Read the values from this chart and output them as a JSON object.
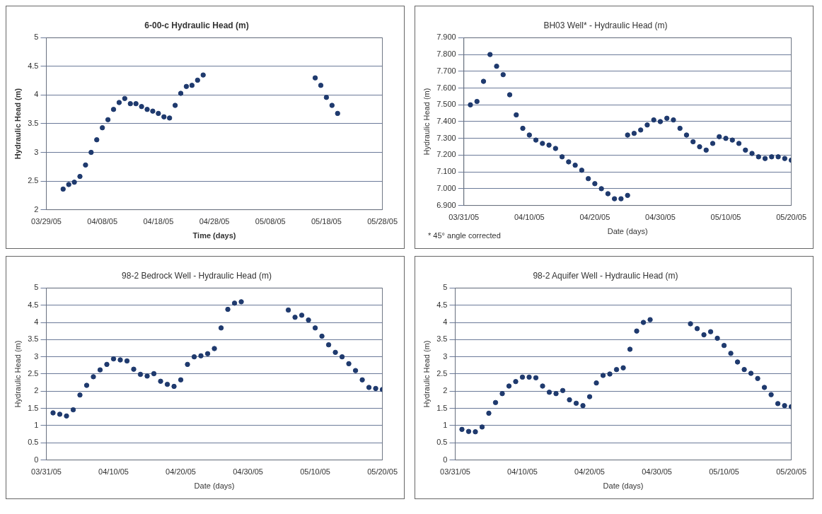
{
  "chart_data": [
    {
      "type": "scatter",
      "title": "6-00-c Hydraulic Head (m)",
      "xlabel": "Time (days)",
      "ylabel": "Hydraulic Head (m)",
      "color": "#1f3a6e",
      "marker": "circle",
      "grid": "y",
      "x": [
        "--04-01",
        "--04-02",
        "--04-03",
        "--04-04",
        "--04-05",
        "--04-06",
        "--04-07",
        "--04-08",
        "--04-09",
        "--04-10",
        "--04-11",
        "--04-12",
        "--04-13",
        "--04-14",
        "--04-15",
        "--04-16",
        "--04-17",
        "--04-18",
        "--04-19",
        "--04-20",
        "--04-21",
        "--04-22",
        "--04-23",
        "--04-24",
        "--04-25",
        "--04-26",
        "--05-16",
        "--05-17",
        "--05-18",
        "--05-19",
        "--05-20"
      ],
      "values": [
        2.36,
        2.44,
        2.48,
        2.58,
        2.78,
        3.0,
        3.22,
        3.43,
        3.57,
        3.75,
        3.87,
        3.94,
        3.85,
        3.85,
        3.8,
        3.75,
        3.72,
        3.68,
        3.62,
        3.6,
        3.82,
        4.03,
        4.15,
        4.17,
        4.26,
        4.35,
        4.3,
        4.17,
        3.96,
        3.82,
        3.68
      ],
      "xlim": [
        "--03-29",
        "--05-28"
      ],
      "xticks": [
        {
          "value": "--03-29",
          "label": "03/29/05"
        },
        {
          "value": "--04-08",
          "label": "04/08/05"
        },
        {
          "value": "--04-18",
          "label": "04/18/05"
        },
        {
          "value": "--04-28",
          "label": "04/28/05"
        },
        {
          "value": "--05-08",
          "label": "05/08/05"
        },
        {
          "value": "--05-18",
          "label": "05/18/05"
        },
        {
          "value": "--05-28",
          "label": "05/28/05"
        }
      ],
      "ylim": [
        2,
        5
      ],
      "yticks": [
        2,
        2.5,
        3,
        3.5,
        4,
        4.5,
        5
      ]
    },
    {
      "type": "scatter",
      "title": "BH03 Well* - Hydraulic Head (m)",
      "xlabel": "Date (days)",
      "ylabel": "Hydraulic Head (m)",
      "color": "#1f3a6e",
      "marker": "circle",
      "grid": "y",
      "annotations": [
        "* 45° angle corrected"
      ],
      "x": [
        "--04-01",
        "--04-02",
        "--04-03",
        "--04-04",
        "--04-05",
        "--04-06",
        "--04-07",
        "--04-08",
        "--04-09",
        "--04-10",
        "--04-11",
        "--04-12",
        "--04-13",
        "--04-14",
        "--04-15",
        "--04-16",
        "--04-17",
        "--04-18",
        "--04-19",
        "--04-20",
        "--04-21",
        "--04-22",
        "--04-23",
        "--04-24",
        "--04-25",
        "--04-25",
        "--04-26",
        "--04-27",
        "--04-28",
        "--04-29",
        "--04-30",
        "--05-01",
        "--05-02",
        "--05-03",
        "--05-04",
        "--05-05",
        "--05-06",
        "--05-07",
        "--05-08",
        "--05-09",
        "--05-10",
        "--05-11",
        "--05-12",
        "--05-13",
        "--05-14",
        "--05-15",
        "--05-16",
        "--05-17",
        "--05-18",
        "--05-19",
        "--05-20"
      ],
      "values": [
        7.5,
        7.52,
        7.64,
        7.8,
        7.73,
        7.68,
        7.56,
        7.44,
        7.36,
        7.32,
        7.29,
        7.27,
        7.26,
        7.24,
        7.19,
        7.16,
        7.14,
        7.11,
        7.06,
        7.03,
        7.0,
        6.97,
        6.94,
        6.94,
        6.96,
        7.32,
        7.33,
        7.35,
        7.38,
        7.41,
        7.4,
        7.42,
        7.41,
        7.36,
        7.32,
        7.28,
        7.25,
        7.23,
        7.27,
        7.31,
        7.3,
        7.29,
        7.27,
        7.23,
        7.21,
        7.19,
        7.18,
        7.19,
        7.19,
        7.18,
        7.17
      ],
      "xlim": [
        "--03-31",
        "--05-20"
      ],
      "xticks": [
        {
          "value": "--03-31",
          "label": "03/31/05"
        },
        {
          "value": "--04-10",
          "label": "04/10/05"
        },
        {
          "value": "--04-20",
          "label": "04/20/05"
        },
        {
          "value": "--04-30",
          "label": "04/30/05"
        },
        {
          "value": "--05-10",
          "label": "05/10/05"
        },
        {
          "value": "--05-20",
          "label": "05/20/05"
        }
      ],
      "ylim": [
        6.9,
        7.9
      ],
      "yticks": [
        {
          "value": 6.9,
          "label": "6.900"
        },
        {
          "value": 7.0,
          "label": "7.000"
        },
        {
          "value": 7.1,
          "label": "7.100"
        },
        {
          "value": 7.2,
          "label": "7.200"
        },
        {
          "value": 7.3,
          "label": "7.300"
        },
        {
          "value": 7.4,
          "label": "7.400"
        },
        {
          "value": 7.5,
          "label": "7.500"
        },
        {
          "value": 7.6,
          "label": "7.600"
        },
        {
          "value": 7.7,
          "label": "7.700"
        },
        {
          "value": 7.8,
          "label": "7.800"
        },
        {
          "value": 7.9,
          "label": "7.900"
        }
      ]
    },
    {
      "type": "scatter",
      "title": "98-2 Bedrock Well - Hydraulic Head (m)",
      "xlabel": "Date (days)",
      "ylabel": "Hydraulic Head (m)",
      "color": "#1f3a6e",
      "marker": "circle",
      "grid": "y",
      "x": [
        "--04-01",
        "--04-02",
        "--04-03",
        "--04-04",
        "--04-05",
        "--04-06",
        "--04-07",
        "--04-08",
        "--04-09",
        "--04-10",
        "--04-11",
        "--04-12",
        "--04-13",
        "--04-14",
        "--04-15",
        "--04-16",
        "--04-17",
        "--04-18",
        "--04-19",
        "--04-20",
        "--04-21",
        "--04-22",
        "--04-23",
        "--04-24",
        "--04-25",
        "--04-26",
        "--04-27",
        "--04-28",
        "--04-29",
        "--05-06",
        "--05-07",
        "--05-08",
        "--05-09",
        "--05-10",
        "--05-11",
        "--05-12",
        "--05-13",
        "--05-14",
        "--05-15",
        "--05-16",
        "--05-17",
        "--05-18",
        "--05-19",
        "--05-20"
      ],
      "values": [
        1.37,
        1.33,
        1.28,
        1.46,
        1.89,
        2.17,
        2.42,
        2.62,
        2.78,
        2.94,
        2.91,
        2.88,
        2.64,
        2.49,
        2.44,
        2.51,
        2.29,
        2.2,
        2.14,
        2.33,
        2.78,
        3.0,
        3.03,
        3.09,
        3.24,
        3.84,
        4.38,
        4.56,
        4.6,
        4.36,
        4.15,
        4.21,
        4.07,
        3.84,
        3.6,
        3.35,
        3.13,
        3.0,
        2.8,
        2.6,
        2.33,
        2.11,
        2.08,
        2.05
      ],
      "xlim": [
        "--03-31",
        "--05-20"
      ],
      "xticks": [
        {
          "value": "--03-31",
          "label": "03/31/05"
        },
        {
          "value": "--04-10",
          "label": "04/10/05"
        },
        {
          "value": "--04-20",
          "label": "04/20/05"
        },
        {
          "value": "--04-30",
          "label": "04/30/05"
        },
        {
          "value": "--05-10",
          "label": "05/10/05"
        },
        {
          "value": "--05-20",
          "label": "05/20/05"
        }
      ],
      "ylim": [
        0,
        5
      ],
      "yticks": [
        0,
        0.5,
        1,
        1.5,
        2,
        2.5,
        3,
        3.5,
        4,
        4.5,
        5
      ]
    },
    {
      "type": "scatter",
      "title": "98-2 Aquifer Well - Hydraulic Head (m)",
      "xlabel": "Date (days)",
      "ylabel": "Hydraulic Head (m)",
      "color": "#1f3a6e",
      "marker": "circle",
      "grid": "y",
      "x": [
        "--04-01",
        "--04-02",
        "--04-03",
        "--04-04",
        "--04-05",
        "--04-06",
        "--04-07",
        "--04-08",
        "--04-09",
        "--04-10",
        "--04-11",
        "--04-12",
        "--04-13",
        "--04-14",
        "--04-15",
        "--04-16",
        "--04-17",
        "--04-18",
        "--04-19",
        "--04-20",
        "--04-21",
        "--04-22",
        "--04-23",
        "--04-24",
        "--04-25",
        "--04-26",
        "--04-27",
        "--04-28",
        "--04-29",
        "--05-05",
        "--05-06",
        "--05-07",
        "--05-08",
        "--05-09",
        "--05-10",
        "--05-11",
        "--05-12",
        "--05-13",
        "--05-14",
        "--05-15",
        "--05-16",
        "--05-17",
        "--05-18",
        "--05-19",
        "--05-20"
      ],
      "values": [
        0.89,
        0.83,
        0.82,
        0.96,
        1.36,
        1.67,
        1.93,
        2.15,
        2.28,
        2.41,
        2.41,
        2.39,
        2.15,
        1.97,
        1.93,
        2.02,
        1.75,
        1.65,
        1.58,
        1.84,
        2.24,
        2.46,
        2.5,
        2.63,
        2.68,
        3.22,
        3.75,
        4.0,
        4.08,
        3.96,
        3.82,
        3.64,
        3.73,
        3.54,
        3.33,
        3.1,
        2.85,
        2.63,
        2.52,
        2.37,
        2.11,
        1.9,
        1.64,
        1.58,
        1.55
      ],
      "xlim": [
        "--03-31",
        "--05-20"
      ],
      "xticks": [
        {
          "value": "--03-31",
          "label": "03/31/05"
        },
        {
          "value": "--04-10",
          "label": "04/10/05"
        },
        {
          "value": "--04-20",
          "label": "04/20/05"
        },
        {
          "value": "--04-30",
          "label": "04/30/05"
        },
        {
          "value": "--05-10",
          "label": "05/10/05"
        },
        {
          "value": "--05-20",
          "label": "05/20/05"
        }
      ],
      "ylim": [
        0,
        5
      ],
      "yticks": [
        0,
        0.5,
        1,
        1.5,
        2,
        2.5,
        3,
        3.5,
        4,
        4.5,
        5
      ]
    }
  ]
}
